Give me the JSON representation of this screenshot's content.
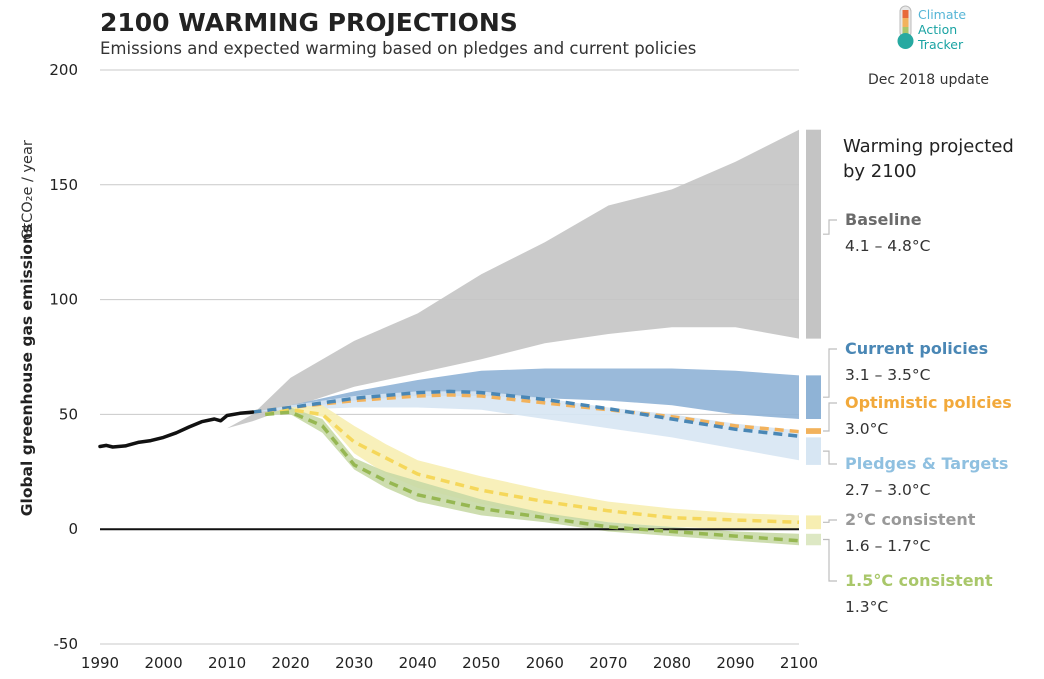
{
  "chart_data": {
    "type": "area",
    "title": "2100 WARMING PROJECTIONS",
    "subtitle": "Emissions and expected warming based on pledges and current policies",
    "update_label": "Dec 2018 update",
    "logo": {
      "line1": "Climate",
      "line2": "Action",
      "line3": "Tracker",
      "icon": "thermometer-icon"
    },
    "ylabel": "Global greenhouse gas emissions",
    "yunit": "GtCO₂e / year",
    "xlim": [
      1990,
      2100
    ],
    "ylim": [
      -50,
      200
    ],
    "x_ticks": [
      "1990",
      "2000",
      "2010",
      "2020",
      "2030",
      "2040",
      "2050",
      "2060",
      "2070",
      "2080",
      "2090",
      "2100"
    ],
    "y_ticks": [
      "200",
      "150",
      "100",
      "50",
      "0",
      "-50"
    ],
    "historical": {
      "color": "#111111",
      "x": [
        1990,
        1991,
        1992,
        1994,
        1996,
        1998,
        2000,
        2002,
        2004,
        2006,
        2008,
        2009,
        2010,
        2012,
        2014
      ],
      "y": [
        36,
        36.5,
        35.8,
        36.3,
        37.8,
        38.6,
        40,
        42,
        44.5,
        46.8,
        48,
        47.2,
        49.5,
        50.5,
        51
      ]
    },
    "bands": [
      {
        "name": "Baseline",
        "color": "#c4c4c4",
        "x": [
          2010,
          2014,
          2020,
          2030,
          2040,
          2050,
          2060,
          2070,
          2080,
          2090,
          2100
        ],
        "upper": [
          44,
          50,
          66,
          82,
          94,
          111,
          125,
          141,
          148,
          160,
          174
        ],
        "lower": [
          44,
          47,
          53,
          62,
          68,
          74,
          81,
          85,
          88,
          88,
          83
        ]
      },
      {
        "name": "Current policies",
        "color": "#8fb3d6",
        "x": [
          2014,
          2020,
          2030,
          2040,
          2050,
          2060,
          2070,
          2080,
          2090,
          2100
        ],
        "upper": [
          51,
          54,
          60,
          65,
          69,
          70,
          70,
          70,
          69,
          67
        ],
        "lower": [
          51,
          52.5,
          56,
          58,
          58,
          57,
          56,
          54,
          50,
          48
        ]
      },
      {
        "name": "Pledges & Targets",
        "color": "#d7e6f3",
        "x": [
          2014,
          2020,
          2030,
          2040,
          2050,
          2060,
          2070,
          2080,
          2090,
          2100
        ],
        "upper": [
          51,
          54,
          58,
          60,
          60,
          57,
          53,
          50,
          46,
          43
        ],
        "lower": [
          51,
          52,
          53,
          53,
          52,
          48,
          44,
          40,
          35,
          30
        ]
      },
      {
        "name": "2°C consistent",
        "color": "#f7eeb2",
        "x": [
          2016,
          2020,
          2025,
          2030,
          2035,
          2040,
          2050,
          2060,
          2070,
          2080,
          2090,
          2100
        ],
        "upper": [
          50,
          53,
          54,
          45,
          37,
          30,
          23,
          17,
          12,
          9,
          7,
          6
        ],
        "lower": [
          50,
          51,
          49,
          33,
          24,
          18,
          11,
          6,
          3,
          1,
          0,
          0
        ]
      },
      {
        "name": "1.5°C consistent",
        "color": "#c8d9a6",
        "x": [
          2016,
          2020,
          2025,
          2030,
          2035,
          2040,
          2050,
          2060,
          2070,
          2080,
          2090,
          2100
        ],
        "upper": [
          50,
          53,
          48,
          31,
          25,
          21,
          13,
          7,
          3,
          1,
          -1,
          -2
        ],
        "lower": [
          50,
          50,
          42,
          26,
          18,
          12,
          6,
          3,
          -1,
          -3,
          -5,
          -7
        ]
      }
    ],
    "dashed_lines": [
      {
        "name": "Optimistic policies",
        "color": "#f2b25c",
        "x": [
          2014,
          2020,
          2030,
          2040,
          2045,
          2050,
          2060,
          2070,
          2080,
          2090,
          2100
        ],
        "y": [
          51,
          53,
          56,
          58,
          58.5,
          58,
          55,
          52,
          49,
          45,
          42.5
        ]
      },
      {
        "name": "Current policies",
        "color": "#4a87b5",
        "x": [
          2014,
          2020,
          2030,
          2040,
          2045,
          2050,
          2060,
          2070,
          2080,
          2090,
          2100
        ],
        "y": [
          51,
          53,
          57,
          59.5,
          60,
          59.5,
          56.5,
          52.5,
          48,
          43.5,
          40.5
        ]
      },
      {
        "name": "2°C consistent",
        "color": "#f5d75a",
        "x": [
          2016,
          2020,
          2025,
          2030,
          2035,
          2040,
          2050,
          2060,
          2070,
          2080,
          2090,
          2100
        ],
        "y": [
          50,
          52,
          50,
          38,
          31,
          24,
          17,
          12,
          8,
          5,
          4,
          3
        ]
      },
      {
        "name": "1.5°C consistent",
        "color": "#96b752",
        "x": [
          2016,
          2020,
          2025,
          2030,
          2035,
          2040,
          2050,
          2060,
          2070,
          2080,
          2090,
          2100
        ],
        "y": [
          50,
          51,
          45,
          28,
          21,
          15,
          9,
          5,
          1,
          -1,
          -3,
          -5
        ]
      }
    ],
    "legend": {
      "heading_line1": "Warming projected",
      "heading_line2": "by 2100",
      "entries": [
        {
          "name": "Baseline",
          "range": "4.1 – 4.8°C",
          "color": "#6b6b6b",
          "bar_color": "#c4c4c4",
          "bar_y": [
            83,
            174
          ]
        },
        {
          "name": "Current policies",
          "range": "3.1 – 3.5°C",
          "color": "#4a87b5",
          "bar_color": "#8fb3d6",
          "bar_y": [
            48,
            67
          ]
        },
        {
          "name": "Optimistic policies",
          "range": "3.0°C",
          "color": "#f2a93b",
          "bar_color": "#f2b25c",
          "bar_y": [
            41.5,
            44
          ]
        },
        {
          "name": "Pledges & Targets",
          "range": "2.7 – 3.0°C",
          "color": "#8fc0e0",
          "bar_color": "#d7e6f3",
          "bar_y": [
            28,
            40
          ]
        },
        {
          "name": "2°C consistent",
          "range": "1.6 – 1.7°C",
          "color": "#999999",
          "bar_color": "#f7eeb2",
          "bar_y": [
            0,
            6
          ]
        },
        {
          "name": "1.5°C consistent",
          "range": "1.3°C",
          "color": "#a9c76a",
          "bar_color": "#dde8c4",
          "bar_y": [
            -7,
            -2
          ]
        }
      ]
    }
  }
}
